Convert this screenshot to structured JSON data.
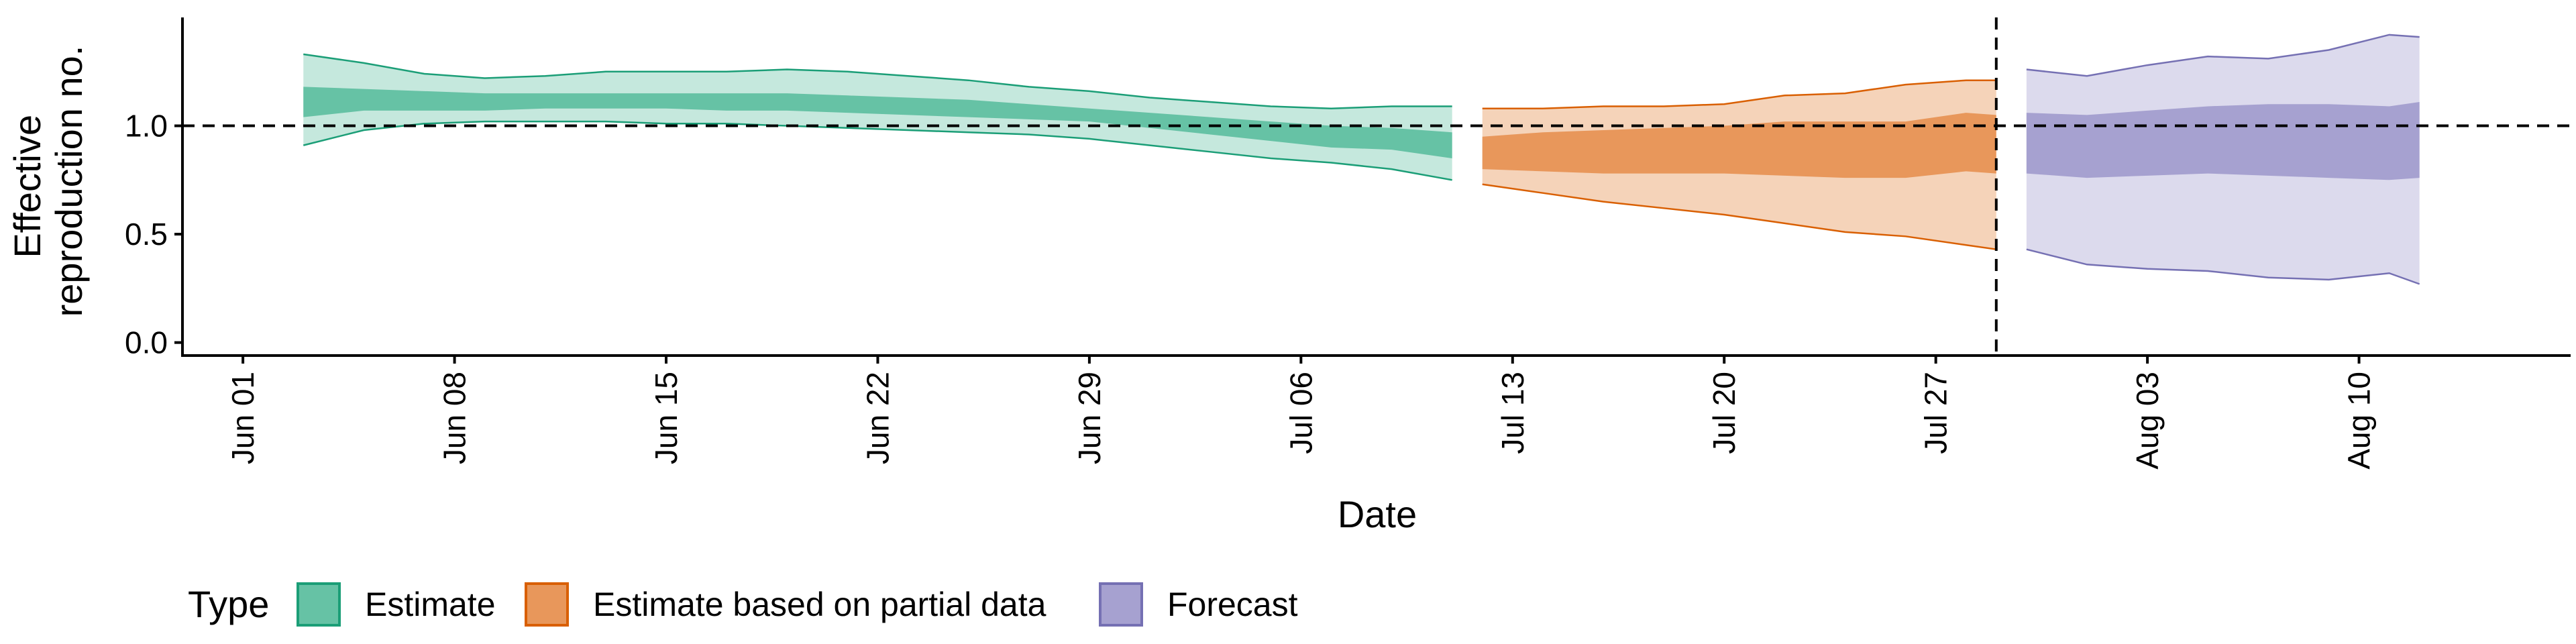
{
  "chart_data": {
    "type": "area",
    "xlabel": "Date",
    "ylabel_lines": [
      "Effective",
      "reproduction no."
    ],
    "x_ticks": [
      {
        "date": "2020-06-01",
        "label": "Jun 01"
      },
      {
        "date": "2020-06-08",
        "label": "Jun 08"
      },
      {
        "date": "2020-06-15",
        "label": "Jun 15"
      },
      {
        "date": "2020-06-22",
        "label": "Jun 22"
      },
      {
        "date": "2020-06-29",
        "label": "Jun 29"
      },
      {
        "date": "2020-07-06",
        "label": "Jul 06"
      },
      {
        "date": "2020-07-13",
        "label": "Jul 13"
      },
      {
        "date": "2020-07-20",
        "label": "Jul 20"
      },
      {
        "date": "2020-07-27",
        "label": "Jul 27"
      },
      {
        "date": "2020-08-03",
        "label": "Aug 03"
      },
      {
        "date": "2020-08-10",
        "label": "Aug 10"
      }
    ],
    "xlim": [
      "2020-05-30",
      "2020-08-17"
    ],
    "y_ticks": [
      0.0,
      0.5,
      1.0
    ],
    "y_tick_labels": [
      "0.0",
      "0.5",
      "1.0"
    ],
    "ylim": [
      -0.06,
      1.5
    ],
    "reference_line_y": 1.0,
    "vertical_line_date": "2020-07-29",
    "legend_title": "Type",
    "legend_position": "bottom",
    "series": [
      {
        "name": "Estimate",
        "fill_dark": "#66c2a5",
        "fill_light": "#c5e8dd",
        "outline": "#1b9e77",
        "x": [
          "2020-06-03",
          "2020-06-05",
          "2020-06-07",
          "2020-06-09",
          "2020-06-11",
          "2020-06-13",
          "2020-06-15",
          "2020-06-17",
          "2020-06-19",
          "2020-06-21",
          "2020-06-23",
          "2020-06-25",
          "2020-06-27",
          "2020-06-29",
          "2020-07-01",
          "2020-07-03",
          "2020-07-05",
          "2020-07-07",
          "2020-07-09",
          "2020-07-11"
        ],
        "lower_90": [
          0.91,
          0.98,
          1.01,
          1.02,
          1.02,
          1.02,
          1.01,
          1.01,
          1.0,
          0.99,
          0.98,
          0.97,
          0.96,
          0.94,
          0.91,
          0.88,
          0.85,
          0.83,
          0.8,
          0.75
        ],
        "upper_90": [
          1.33,
          1.29,
          1.24,
          1.22,
          1.23,
          1.25,
          1.25,
          1.25,
          1.26,
          1.25,
          1.23,
          1.21,
          1.18,
          1.16,
          1.13,
          1.11,
          1.09,
          1.08,
          1.09,
          1.09
        ],
        "lower_50": [
          1.04,
          1.07,
          1.07,
          1.07,
          1.08,
          1.08,
          1.08,
          1.07,
          1.07,
          1.06,
          1.05,
          1.04,
          1.03,
          1.02,
          0.99,
          0.96,
          0.93,
          0.9,
          0.89,
          0.85
        ],
        "upper_50": [
          1.18,
          1.17,
          1.16,
          1.15,
          1.15,
          1.15,
          1.15,
          1.15,
          1.15,
          1.14,
          1.13,
          1.12,
          1.1,
          1.08,
          1.06,
          1.04,
          1.02,
          1.0,
          0.99,
          0.97
        ]
      },
      {
        "name": "Estimate based on partial data",
        "fill_dark": "#e8975b",
        "fill_light": "#f5d3b9",
        "outline": "#d95f02",
        "x": [
          "2020-07-12",
          "2020-07-14",
          "2020-07-16",
          "2020-07-18",
          "2020-07-20",
          "2020-07-22",
          "2020-07-24",
          "2020-07-26",
          "2020-07-28",
          "2020-07-29"
        ],
        "lower_90": [
          0.73,
          0.69,
          0.65,
          0.62,
          0.59,
          0.55,
          0.51,
          0.49,
          0.45,
          0.43
        ],
        "upper_90": [
          1.08,
          1.08,
          1.09,
          1.09,
          1.1,
          1.14,
          1.15,
          1.19,
          1.21,
          1.21
        ],
        "lower_50": [
          0.8,
          0.79,
          0.78,
          0.78,
          0.78,
          0.77,
          0.76,
          0.76,
          0.79,
          0.78
        ],
        "upper_50": [
          0.95,
          0.97,
          0.98,
          0.99,
          1.0,
          1.02,
          1.02,
          1.02,
          1.06,
          1.05
        ]
      },
      {
        "name": "Forecast",
        "fill_dark": "#a6a1d0",
        "fill_light": "#dcdaed",
        "outline": "#7570b3",
        "x": [
          "2020-07-30",
          "2020-08-01",
          "2020-08-03",
          "2020-08-05",
          "2020-08-07",
          "2020-08-09",
          "2020-08-11",
          "2020-08-12"
        ],
        "lower_90": [
          0.43,
          0.36,
          0.34,
          0.33,
          0.3,
          0.29,
          0.32,
          0.27
        ],
        "upper_90": [
          1.26,
          1.23,
          1.28,
          1.32,
          1.31,
          1.35,
          1.42,
          1.41
        ],
        "lower_50": [
          0.78,
          0.76,
          0.77,
          0.78,
          0.77,
          0.76,
          0.75,
          0.76
        ],
        "upper_50": [
          1.06,
          1.05,
          1.07,
          1.09,
          1.1,
          1.1,
          1.09,
          1.11
        ]
      }
    ]
  }
}
